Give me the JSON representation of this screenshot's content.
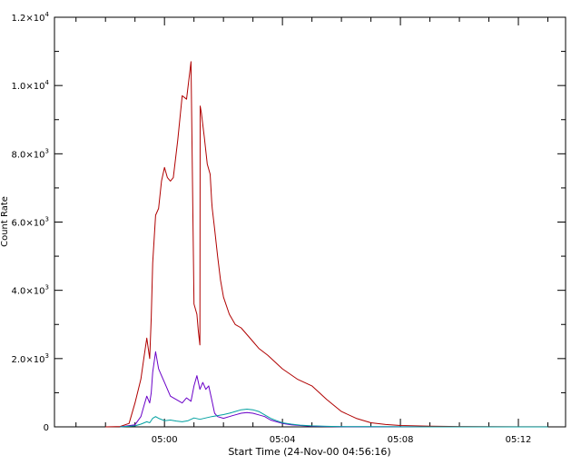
{
  "chart_data": {
    "type": "line",
    "title": "",
    "xlabel": "Start Time (24-Nov-00 04:56:16)",
    "ylabel": "Count Rate",
    "xlim": [
      -3.73,
      13.6
    ],
    "ylim": [
      0,
      12000
    ],
    "grid": false,
    "x_unit": "minutes after 05:00",
    "xticks": [
      {
        "x": 0,
        "label": "05:00"
      },
      {
        "x": 4,
        "label": "05:04"
      },
      {
        "x": 8,
        "label": "05:08"
      },
      {
        "x": 12,
        "label": "05:12"
      }
    ],
    "yticks": [
      {
        "y": 0,
        "label": "0",
        "exp": ""
      },
      {
        "y": 2000,
        "label": "2.0×10",
        "exp": "3"
      },
      {
        "y": 4000,
        "label": "4.0×10",
        "exp": "3"
      },
      {
        "y": 6000,
        "label": "6.0×10",
        "exp": "3"
      },
      {
        "y": 8000,
        "label": "8.0×10",
        "exp": "3"
      },
      {
        "y": 10000,
        "label": "1.0×10",
        "exp": "4"
      },
      {
        "y": 12000,
        "label": "1.2×10",
        "exp": "4"
      }
    ],
    "series": [
      {
        "color": "#b00000",
        "x": [
          -2.0,
          -1.5,
          -1.2,
          -1.0,
          -0.8,
          -0.7,
          -0.6,
          -0.5,
          -0.45,
          -0.4,
          -0.3,
          -0.2,
          -0.1,
          0.0,
          0.1,
          0.2,
          0.3,
          0.45,
          0.6,
          0.75,
          0.9,
          1.0,
          1.1,
          1.15,
          1.2,
          1.21,
          1.25,
          1.35,
          1.45,
          1.55,
          1.6,
          1.62,
          1.7,
          1.8,
          1.9,
          2.0,
          2.2,
          2.4,
          2.6,
          2.8,
          3.0,
          3.2,
          3.5,
          4.0,
          4.5,
          5.0,
          5.5,
          6.0,
          6.5,
          7.0,
          7.5,
          8.0,
          8.5,
          9.0,
          10.0,
          11.0,
          12.0,
          13.0
        ],
        "y": [
          0,
          10,
          100,
          700,
          1400,
          2000,
          2600,
          2000,
          3200,
          4800,
          6200,
          6400,
          7200,
          7600,
          7300,
          7200,
          7300,
          8400,
          9700,
          9600,
          10700,
          3600,
          3300,
          2800,
          2400,
          9400,
          9200,
          8500,
          7700,
          7400,
          6600,
          6400,
          5800,
          5000,
          4300,
          3800,
          3300,
          3000,
          2900,
          2700,
          2500,
          2300,
          2100,
          1700,
          1400,
          1200,
          800,
          450,
          250,
          120,
          70,
          40,
          30,
          20,
          10,
          5,
          3,
          2
        ]
      },
      {
        "color": "#6a00c8",
        "x": [
          -1.5,
          -1.0,
          -0.8,
          -0.7,
          -0.6,
          -0.5,
          -0.45,
          -0.4,
          -0.3,
          -0.2,
          -0.1,
          0.0,
          0.2,
          0.4,
          0.6,
          0.75,
          0.9,
          1.0,
          1.1,
          1.2,
          1.3,
          1.4,
          1.5,
          1.6,
          1.7,
          1.8,
          2.0,
          2.2,
          2.4,
          2.6,
          2.8,
          3.0,
          3.2,
          3.4,
          3.6,
          3.8,
          4.0,
          4.3,
          4.6,
          5.0,
          5.5,
          6.0,
          7.0,
          8.0,
          9.0,
          10.0,
          11.0,
          12.0,
          13.0
        ],
        "y": [
          0,
          60,
          300,
          600,
          900,
          700,
          1000,
          1600,
          2200,
          1700,
          1500,
          1300,
          900,
          800,
          700,
          850,
          750,
          1200,
          1500,
          1100,
          1300,
          1100,
          1200,
          800,
          400,
          300,
          250,
          300,
          350,
          400,
          420,
          400,
          350,
          300,
          200,
          150,
          100,
          60,
          40,
          20,
          10,
          5,
          3,
          2,
          1,
          1,
          0,
          0,
          0
        ]
      },
      {
        "color": "#00a0a0",
        "x": [
          -1.5,
          -1.0,
          -0.8,
          -0.6,
          -0.5,
          -0.4,
          -0.3,
          -0.2,
          0.0,
          0.2,
          0.4,
          0.6,
          0.8,
          1.0,
          1.2,
          1.4,
          1.6,
          1.8,
          2.0,
          2.2,
          2.4,
          2.6,
          2.8,
          3.0,
          3.2,
          3.4,
          3.6,
          3.8,
          4.0,
          4.3,
          4.6,
          5.0,
          5.5,
          6.0,
          7.0,
          8.0,
          9.0,
          10.0,
          11.0,
          12.0,
          13.0
        ],
        "y": [
          0,
          30,
          80,
          150,
          120,
          250,
          300,
          250,
          180,
          200,
          170,
          150,
          180,
          260,
          220,
          260,
          300,
          330,
          360,
          400,
          450,
          500,
          520,
          500,
          450,
          350,
          250,
          180,
          120,
          80,
          50,
          30,
          15,
          8,
          4,
          2,
          1,
          1,
          0,
          0,
          0
        ]
      }
    ]
  }
}
